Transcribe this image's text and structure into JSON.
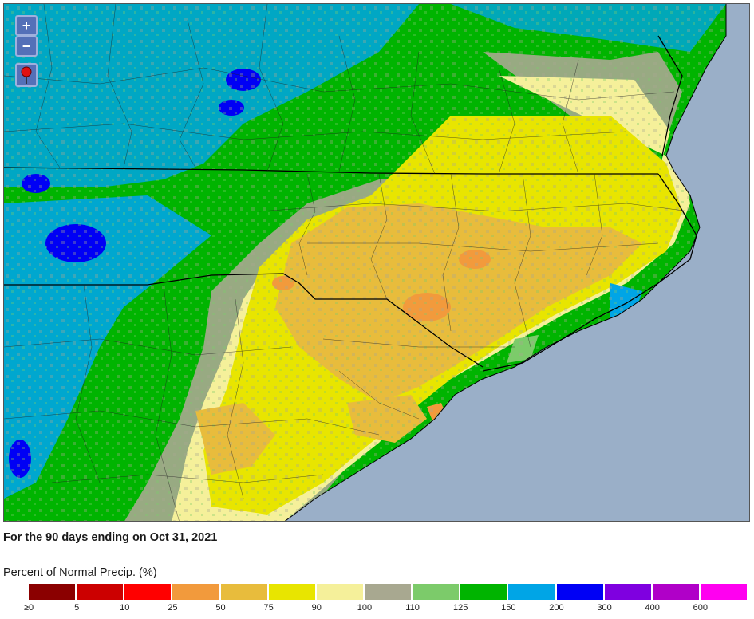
{
  "controls": {
    "zoom_in_label": "+",
    "zoom_out_label": "−",
    "pin_icon": "location-pin-icon"
  },
  "caption": "For the 90 days ending on Oct 31, 2021",
  "legend": {
    "title": "Percent of Normal Precip. (%)",
    "ticks": [
      "≥0",
      "5",
      "10",
      "25",
      "50",
      "75",
      "90",
      "100",
      "110",
      "125",
      "150",
      "200",
      "300",
      "400",
      "600"
    ],
    "colors": [
      "#8b0000",
      "#cc0000",
      "#ff0000",
      "#f29a3c",
      "#e8bc3c",
      "#e8e500",
      "#f5f09a",
      "#a8a890",
      "#7ccb6a",
      "#00b400",
      "#00a5e6",
      "#0000f5",
      "#7f00e0",
      "#b000c8",
      "#ff00f0"
    ]
  },
  "map": {
    "ocean_color": "#9aafc8",
    "state_line_color": "#000000",
    "county_line_color": "#222222"
  }
}
